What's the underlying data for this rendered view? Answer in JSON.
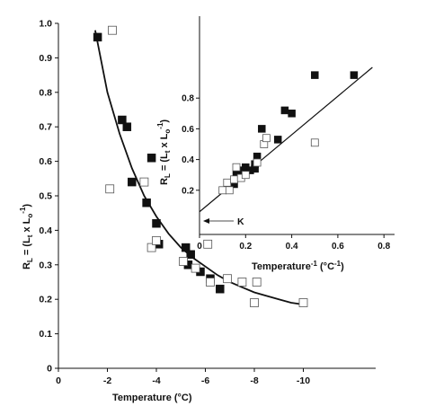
{
  "chart_data": [
    {
      "type": "scatter",
      "xlabel": "Temperature (°C)",
      "ylabel_parts": {
        "main": "R",
        "sub": "L",
        "eq": " = (L",
        "sub2": "t",
        "mid": " x L",
        "sub3": "o",
        "sup": "-1",
        "end": ")"
      },
      "xlim": [
        0,
        -12
      ],
      "ylim": [
        0,
        1.0
      ],
      "xticks": [
        0,
        -2,
        -4,
        -6,
        -8,
        -10
      ],
      "xtick_labels": [
        "0",
        "-2",
        "-4",
        "-6",
        "-8",
        "-10"
      ],
      "yticks": [
        0,
        0.1,
        0.2,
        0.3,
        0.4,
        0.5,
        0.6,
        0.7,
        0.8,
        0.9,
        1.0
      ],
      "ytick_labels": [
        "0",
        "0.1",
        "0.2",
        "0.3",
        "0.4",
        "0.5",
        "0.6",
        "0.7",
        "0.8",
        "0.9",
        "1.0"
      ],
      "series": [
        {
          "marker": "filled-square",
          "points": [
            [
              -1.6,
              0.96
            ],
            [
              -2.6,
              0.72
            ],
            [
              -2.8,
              0.7
            ],
            [
              -3.0,
              0.54
            ],
            [
              -3.6,
              0.48
            ],
            [
              -3.8,
              0.61
            ],
            [
              -4.0,
              0.42
            ],
            [
              -4.1,
              0.36
            ],
            [
              -5.2,
              0.35
            ],
            [
              -5.3,
              0.3
            ],
            [
              -5.4,
              0.33
            ],
            [
              -5.8,
              0.28
            ],
            [
              -6.2,
              0.26
            ],
            [
              -6.6,
              0.23
            ]
          ]
        },
        {
          "marker": "open-square",
          "points": [
            [
              -2.2,
              0.98
            ],
            [
              -2.1,
              0.52
            ],
            [
              -3.5,
              0.54
            ],
            [
              -3.8,
              0.35
            ],
            [
              -4.0,
              0.37
            ],
            [
              -5.1,
              0.31
            ],
            [
              -5.6,
              0.29
            ],
            [
              -6.1,
              0.36
            ],
            [
              -6.2,
              0.25
            ],
            [
              -6.9,
              0.26
            ],
            [
              -7.5,
              0.25
            ],
            [
              -8.0,
              0.19
            ],
            [
              -8.1,
              0.25
            ],
            [
              -10.0,
              0.19
            ]
          ]
        }
      ],
      "fit_curve": "a/(1-x)",
      "fit_curve_points": [
        [
          -1.5,
          0.98
        ],
        [
          -2.0,
          0.8
        ],
        [
          -2.5,
          0.68
        ],
        [
          -3.0,
          0.58
        ],
        [
          -3.5,
          0.5
        ],
        [
          -4.0,
          0.44
        ],
        [
          -4.5,
          0.39
        ],
        [
          -5.0,
          0.35
        ],
        [
          -5.5,
          0.32
        ],
        [
          -6.0,
          0.295
        ],
        [
          -6.5,
          0.27
        ],
        [
          -7.0,
          0.25
        ],
        [
          -7.5,
          0.235
        ],
        [
          -8.0,
          0.22
        ],
        [
          -8.5,
          0.21
        ],
        [
          -9.0,
          0.2
        ],
        [
          -9.5,
          0.19
        ],
        [
          -10.0,
          0.185
        ]
      ]
    },
    {
      "type": "scatter",
      "xlabel_parts": {
        "main": "Temperature",
        "sup": "-1",
        "end": " (°C",
        "sup2": "-1",
        "close": ")"
      },
      "ylabel_parts": {
        "main": "R",
        "sub": "L",
        "eq": " = (L",
        "sub2": "t",
        "mid": " x L",
        "sub3": "o",
        "sup": "-1",
        "end": ")"
      },
      "xlim": [
        0,
        0.9
      ],
      "ylim": [
        0,
        1.0
      ],
      "xticks": [
        0,
        0.2,
        0.4,
        0.6,
        0.8
      ],
      "xtick_labels": [
        "0",
        "0.2",
        "0.4",
        "0.6",
        "0.8"
      ],
      "yticks": [
        0.2,
        0.4,
        0.6,
        0.8
      ],
      "ytick_labels": [
        "0.2",
        "0.4",
        "0.6",
        "0.8"
      ],
      "annotation": "K",
      "annotation_point": [
        0,
        0.05
      ],
      "series": [
        {
          "marker": "filled-square",
          "points": [
            [
              0.15,
              0.24
            ],
            [
              0.16,
              0.3
            ],
            [
              0.18,
              0.33
            ],
            [
              0.19,
              0.3
            ],
            [
              0.2,
              0.35
            ],
            [
              0.22,
              0.33
            ],
            [
              0.24,
              0.37
            ],
            [
              0.25,
              0.42
            ],
            [
              0.24,
              0.34
            ],
            [
              0.27,
              0.6
            ],
            [
              0.34,
              0.53
            ],
            [
              0.37,
              0.72
            ],
            [
              0.4,
              0.7
            ],
            [
              0.5,
              0.95
            ],
            [
              0.67,
              0.95
            ]
          ]
        },
        {
          "marker": "open-square",
          "points": [
            [
              0.1,
              0.2
            ],
            [
              0.12,
              0.25
            ],
            [
              0.13,
              0.2
            ],
            [
              0.15,
              0.27
            ],
            [
              0.16,
              0.35
            ],
            [
              0.18,
              0.28
            ],
            [
              0.2,
              0.3
            ],
            [
              0.25,
              0.38
            ],
            [
              0.28,
              0.5
            ],
            [
              0.29,
              0.54
            ],
            [
              0.5,
              0.51
            ]
          ]
        }
      ],
      "fit_line": [
        [
          0,
          0.06
        ],
        [
          0.75,
          1.0
        ]
      ]
    }
  ]
}
